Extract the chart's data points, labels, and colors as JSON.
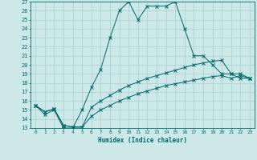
{
  "xlabel": "Humidex (Indice chaleur)",
  "ylabel": "",
  "background_color": "#cce8e8",
  "grid_color": "#aacece",
  "line_color": "#006868",
  "xlim": [
    -0.5,
    23.5
  ],
  "ylim": [
    13,
    27
  ],
  "xticks": [
    0,
    1,
    2,
    3,
    4,
    5,
    6,
    7,
    8,
    9,
    10,
    11,
    12,
    13,
    14,
    15,
    16,
    17,
    18,
    19,
    20,
    21,
    22,
    23
  ],
  "yticks": [
    13,
    14,
    15,
    16,
    17,
    18,
    19,
    20,
    21,
    22,
    23,
    24,
    25,
    26,
    27
  ],
  "line1_x": [
    0,
    1,
    2,
    3,
    4,
    5,
    6,
    7,
    8,
    9,
    10,
    11,
    12,
    13,
    14,
    15,
    16,
    17,
    18,
    19,
    20,
    21,
    22,
    23
  ],
  "line1_y": [
    15.5,
    14.5,
    15.0,
    13.0,
    13.0,
    15.0,
    17.5,
    19.5,
    23.0,
    26.0,
    27.0,
    25.0,
    26.5,
    26.5,
    26.5,
    27.0,
    24.0,
    21.0,
    21.0,
    20.0,
    19.0,
    19.0,
    18.5,
    18.5
  ],
  "line2_x": [
    0,
    1,
    2,
    3,
    4,
    5,
    6,
    7,
    8,
    9,
    10,
    11,
    12,
    13,
    14,
    15,
    16,
    17,
    18,
    19,
    20,
    21,
    22,
    23
  ],
  "line2_y": [
    15.5,
    14.8,
    15.1,
    13.3,
    13.1,
    13.1,
    15.3,
    16.0,
    16.6,
    17.2,
    17.7,
    18.1,
    18.5,
    18.8,
    19.1,
    19.4,
    19.7,
    20.0,
    20.2,
    20.4,
    20.5,
    19.0,
    19.0,
    18.5
  ],
  "line3_x": [
    0,
    1,
    2,
    3,
    4,
    5,
    6,
    7,
    8,
    9,
    10,
    11,
    12,
    13,
    14,
    15,
    16,
    17,
    18,
    19,
    20,
    21,
    22,
    23
  ],
  "line3_y": [
    15.5,
    14.8,
    15.1,
    13.3,
    13.1,
    13.1,
    14.3,
    15.0,
    15.5,
    16.0,
    16.4,
    16.8,
    17.1,
    17.4,
    17.7,
    17.9,
    18.1,
    18.3,
    18.5,
    18.7,
    18.8,
    18.5,
    18.8,
    18.5
  ],
  "figsize": [
    3.2,
    2.0
  ],
  "dpi": 100
}
